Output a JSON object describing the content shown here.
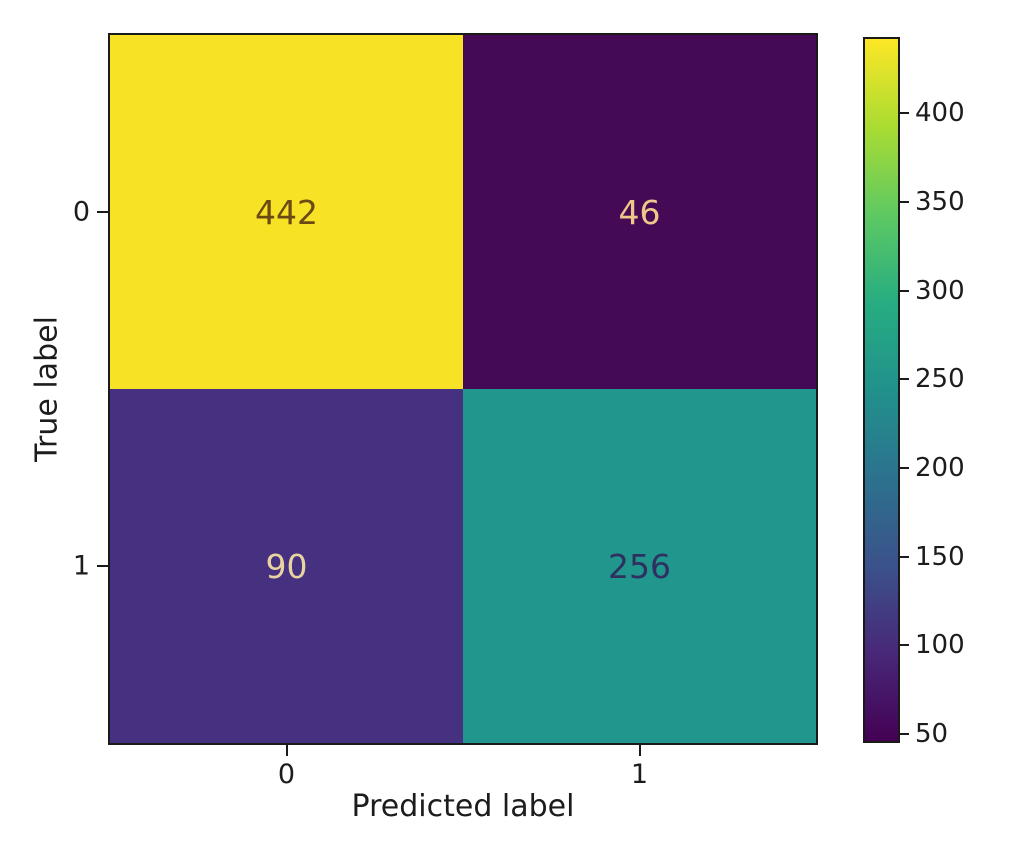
{
  "chart_data": {
    "type": "heatmap",
    "title": "",
    "xlabel": "Predicted label",
    "ylabel": "True label",
    "x_tick_labels": [
      "0",
      "1"
    ],
    "y_tick_labels": [
      "0",
      "1"
    ],
    "matrix": [
      [
        442,
        46
      ],
      [
        90,
        256
      ]
    ],
    "vmin": 46,
    "vmax": 442,
    "colormap": "viridis",
    "grid": false,
    "cells": [
      {
        "row": "0",
        "col": "0",
        "value": "442",
        "bg": "#f7e226",
        "text_color": "#6b4a14"
      },
      {
        "row": "0",
        "col": "1",
        "value": "46",
        "bg": "#440a56",
        "text_color": "#eec88b"
      },
      {
        "row": "1",
        "col": "0",
        "value": "90",
        "bg": "#463180",
        "text_color": "#e9d4a0"
      },
      {
        "row": "1",
        "col": "1",
        "value": "256",
        "bg": "#21968c",
        "text_color": "#2e3060"
      }
    ],
    "colorbar": {
      "position": "right",
      "tick_values": [
        400,
        350,
        300,
        250,
        200,
        150,
        100,
        50
      ],
      "tick_labels": [
        "400",
        "350",
        "300",
        "250",
        "200",
        "150",
        "100",
        "50"
      ],
      "gradient_stops": [
        "#440154",
        "#482878",
        "#3b528b",
        "#2c728e",
        "#21918c",
        "#27ad81",
        "#5ec962",
        "#aadc32",
        "#fde725"
      ]
    }
  },
  "colors": {
    "background": "#ffffff",
    "spine": "#1a1a1a",
    "tick_text": "#1c1c1c"
  }
}
